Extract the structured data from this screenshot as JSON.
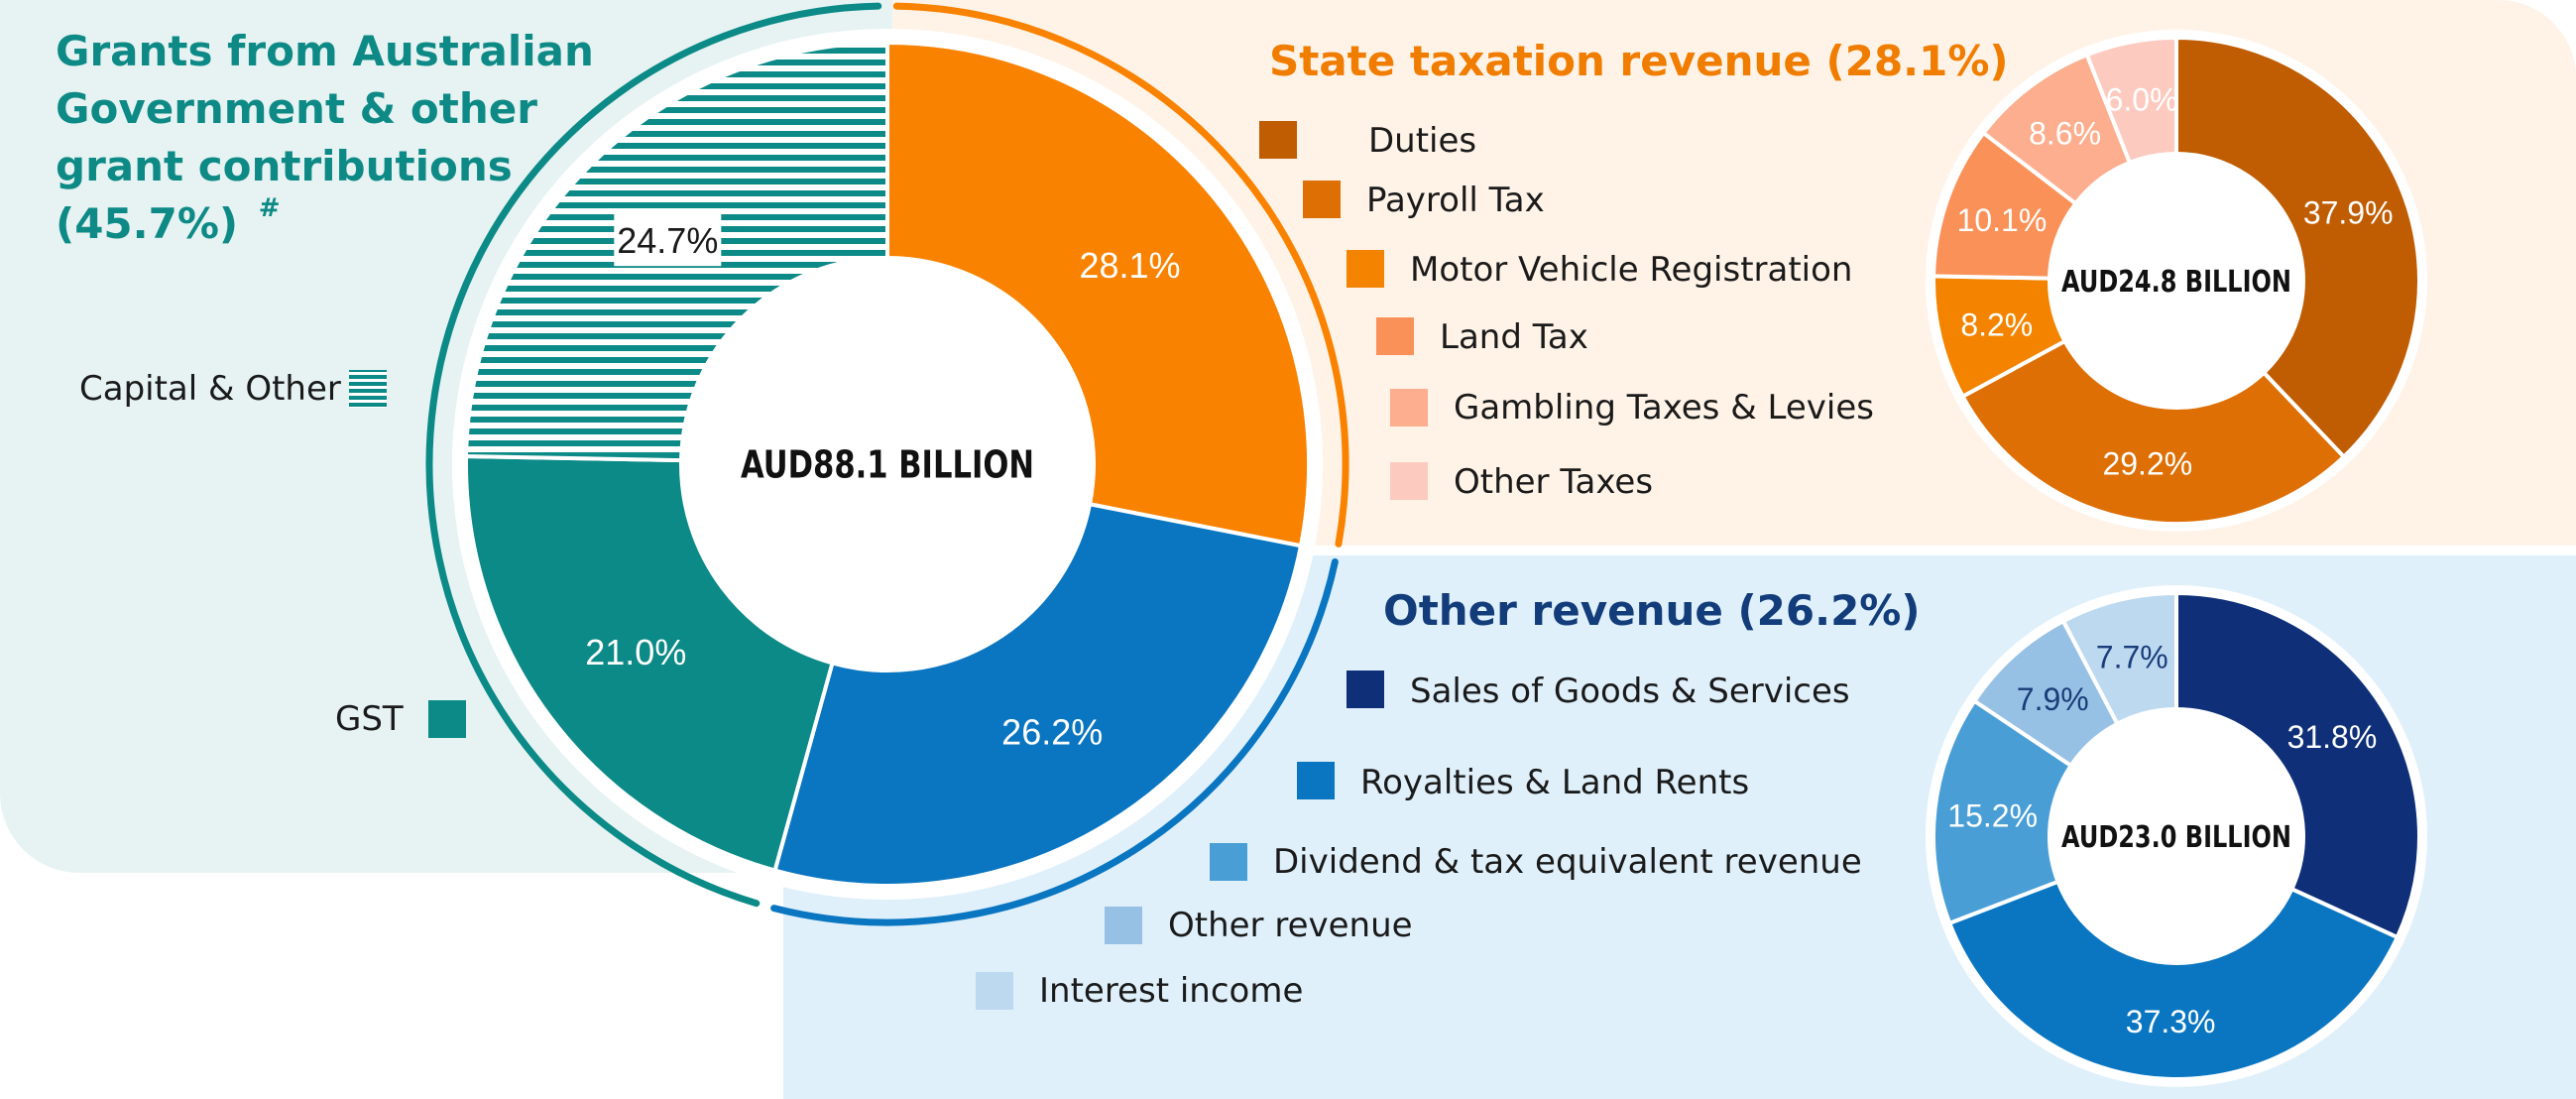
{
  "chart_data": [
    {
      "type": "pie",
      "center_label": "AUD88.1 BILLION",
      "slices": [
        {
          "label": "State taxation revenue",
          "value": 28.1,
          "display": "28.1%",
          "color": "#f98200"
        },
        {
          "label": "Other revenue",
          "value": 26.2,
          "display": "26.2%",
          "color": "#0a76c1"
        },
        {
          "label": "GST",
          "value": 21.0,
          "display": "21.0%",
          "color": "#0b8a87"
        },
        {
          "label": "Capital & Other",
          "value": 24.7,
          "display": "24.7%",
          "color": "#0b8a87",
          "pattern": "horizontal-stripes"
        }
      ],
      "groups": [
        {
          "title": "Grants from Australian Government & other grant contributions (45.7%)",
          "title_lines": [
            "Grants from Australian",
            "Government & other",
            "grant contributions",
            "(45.7%)"
          ],
          "footnote_mark": "#",
          "color": "#0e8a86"
        },
        {
          "title": "State taxation revenue (28.1%)",
          "color": "#f07d00"
        },
        {
          "title": "Other revenue (26.2%)",
          "color": "#123d7a"
        }
      ],
      "legend": [
        {
          "label": "Capital & Other",
          "pattern": "horizontal-stripes",
          "color": "#0b8a87"
        },
        {
          "label": "GST",
          "color": "#0b8a87"
        }
      ]
    },
    {
      "type": "pie",
      "center_label": "AUD24.8 BILLION",
      "slices": [
        {
          "label": "Duties",
          "value": 37.9,
          "display": "37.9%",
          "color": "#c05c02"
        },
        {
          "label": "Payroll Tax",
          "value": 29.2,
          "display": "29.2%",
          "color": "#de6f05"
        },
        {
          "label": "Motor Vehicle Registration",
          "value": 8.2,
          "display": "8.2%",
          "color": "#f48400"
        },
        {
          "label": "Land Tax",
          "value": 10.1,
          "display": "10.1%",
          "color": "#fa9158"
        },
        {
          "label": "Gambling Taxes & Levies",
          "value": 8.6,
          "display": "8.6%",
          "color": "#fcae8e"
        },
        {
          "label": "Other Taxes",
          "value": 6.0,
          "display": "6.0%",
          "color": "#fdcac0"
        }
      ]
    },
    {
      "type": "pie",
      "center_label": "AUD23.0 BILLION",
      "slices": [
        {
          "label": "Sales of Goods & Services",
          "value": 31.8,
          "display": "31.8%",
          "color": "#0f3079"
        },
        {
          "label": "Royalties & Land Rents",
          "value": 37.3,
          "display": "37.3%",
          "color": "#0a76c1"
        },
        {
          "label": "Dividend & tax equivalent revenue",
          "value": 15.2,
          "display": "15.2%",
          "color": "#4a9ed6"
        },
        {
          "label": "Other revenue",
          "value": 7.9,
          "display": "7.9%",
          "color": "#97c1e4"
        },
        {
          "label": "Interest income",
          "value": 7.7,
          "display": "7.7%",
          "color": "#bdd9f0"
        }
      ]
    }
  ],
  "colors": {
    "panel_green": "#e6f3f2",
    "panel_orange": "#fff3e8",
    "panel_blue": "#dff0fb"
  }
}
